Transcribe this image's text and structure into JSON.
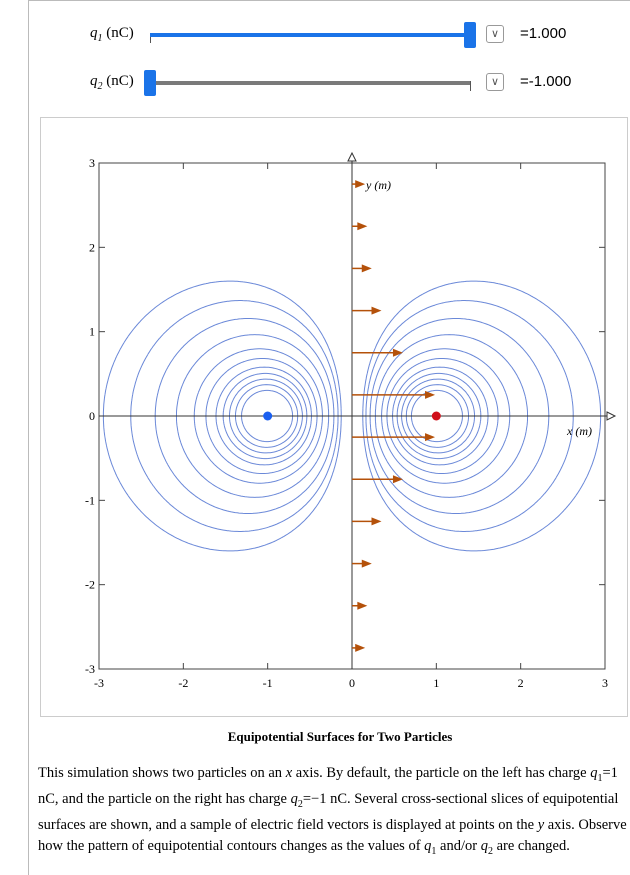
{
  "controls": [
    {
      "symbol": "q",
      "subscript": "1",
      "unit": " (nC)",
      "value": 1,
      "value_label": "=1.000",
      "min": -1,
      "max": 1
    },
    {
      "symbol": "q",
      "subscript": "2",
      "unit": " (nC)",
      "value": -1,
      "value_label": "=-1.000",
      "min": -1,
      "max": 1
    }
  ],
  "chart_data": {
    "type": "contour",
    "xlim": [
      -3,
      3
    ],
    "ylim": [
      -3,
      3
    ],
    "xticks": [
      -3,
      -2,
      -1,
      0,
      1,
      2,
      3
    ],
    "yticks": [
      -3,
      -2,
      -1,
      0,
      1,
      2,
      3
    ],
    "x_label": "x (m)",
    "y_label": "y (m)",
    "charges": [
      {
        "x": -1,
        "y": 0,
        "color": "#1a5ff0"
      },
      {
        "x": 1,
        "y": 0,
        "color": "#d0101a"
      }
    ],
    "levels": [
      -2.8,
      -2.2,
      -1.8,
      -1.5,
      -1.25,
      -1,
      -0.8,
      -0.6,
      -0.45,
      -0.34,
      -0.26,
      0.26,
      0.34,
      0.45,
      0.6,
      0.8,
      1,
      1.25,
      1.5,
      1.8,
      2.2,
      2.8
    ],
    "contour_color": "#6a88d8",
    "field_points_y": [
      -2.75,
      -2.25,
      -1.75,
      -1.25,
      -0.75,
      -0.25,
      0.25,
      0.75,
      1.25,
      1.75,
      2.25,
      2.75
    ],
    "arrow_color": "#b4510a"
  },
  "caption": "Equipotential Surfaces for Two Particles",
  "description": [
    "This simulation shows two particles on an ",
    "x",
    " axis. By default, the particle on the left has charge ",
    "q",
    "1",
    "=1 nC, and the particle on the right has charge ",
    "q",
    "2",
    "=−1 nC. Several cross-sectional slices of equipotential surfaces are shown, and a sample of electric field vectors is displayed at points on the ",
    "y",
    " axis. Observe how the pattern of equipotential contours changes as the values of ",
    "q",
    "1",
    " and/or ",
    "q",
    "2",
    " are changed."
  ]
}
